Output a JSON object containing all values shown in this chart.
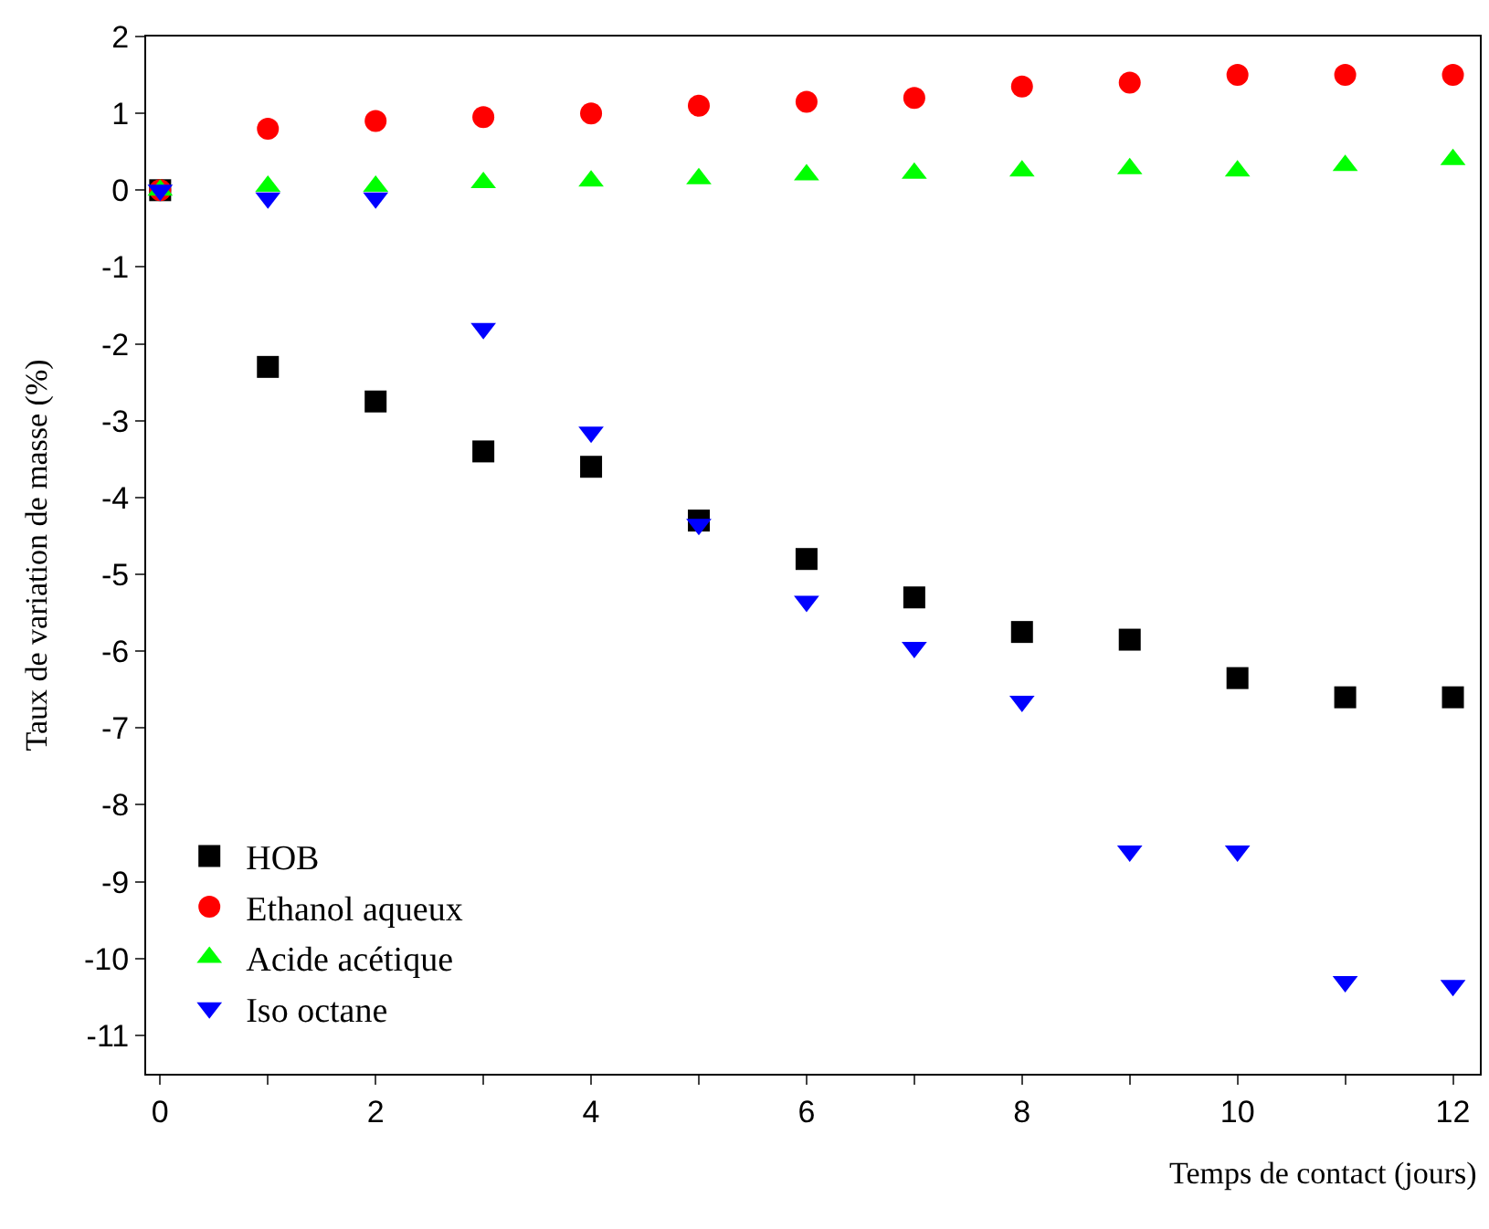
{
  "chart_data": {
    "type": "scatter",
    "xlabel": "Temps de contact (jours)",
    "ylabel": "Taux de variation de masse (%)",
    "x": [
      0,
      1,
      2,
      3,
      4,
      5,
      6,
      7,
      8,
      9,
      10,
      11,
      12
    ],
    "series": [
      {
        "name": "HOB",
        "color": "#000000",
        "marker": "square",
        "values": [
          0,
          -2.3,
          -2.75,
          -3.4,
          -3.6,
          -4.3,
          -4.8,
          -5.3,
          -5.75,
          -5.85,
          -6.35,
          -6.6,
          -6.6
        ]
      },
      {
        "name": "Ethanol aqueux",
        "color": "#ff0000",
        "marker": "circle",
        "values": [
          0,
          0.8,
          0.9,
          0.95,
          1.0,
          1.1,
          1.15,
          1.2,
          1.35,
          1.4,
          1.5,
          1.5,
          1.5
        ]
      },
      {
        "name": "Acide acétique",
        "color": "#00ff00",
        "marker": "triangle",
        "values": [
          0,
          0.05,
          0.05,
          0.1,
          0.12,
          0.15,
          0.2,
          0.22,
          0.25,
          0.28,
          0.25,
          0.32,
          0.4
        ]
      },
      {
        "name": "Iso octane",
        "color": "#0000ff",
        "marker": "triangle-down",
        "values": [
          0,
          -0.1,
          -0.1,
          -1.8,
          -3.15,
          -4.35,
          -5.35,
          -5.95,
          -6.65,
          -8.6,
          -8.6,
          -10.3,
          -10.35
        ]
      }
    ],
    "xlim": [
      -0.13,
      12.25
    ],
    "ylim": [
      -11.5,
      2
    ],
    "xticks": [
      0,
      {
        "value": 1,
        "label": null
      },
      2,
      {
        "value": 3,
        "label": null
      },
      4,
      {
        "value": 5,
        "label": null
      },
      6,
      {
        "value": 7,
        "label": null
      },
      8,
      {
        "value": 9,
        "label": null
      },
      10,
      {
        "value": 11,
        "label": null
      },
      12
    ],
    "yticks": [
      2,
      1,
      0,
      -1,
      -2,
      -3,
      -4,
      -5,
      -6,
      -7,
      -8,
      -9,
      -10,
      -11
    ],
    "legend": "bottom left"
  }
}
